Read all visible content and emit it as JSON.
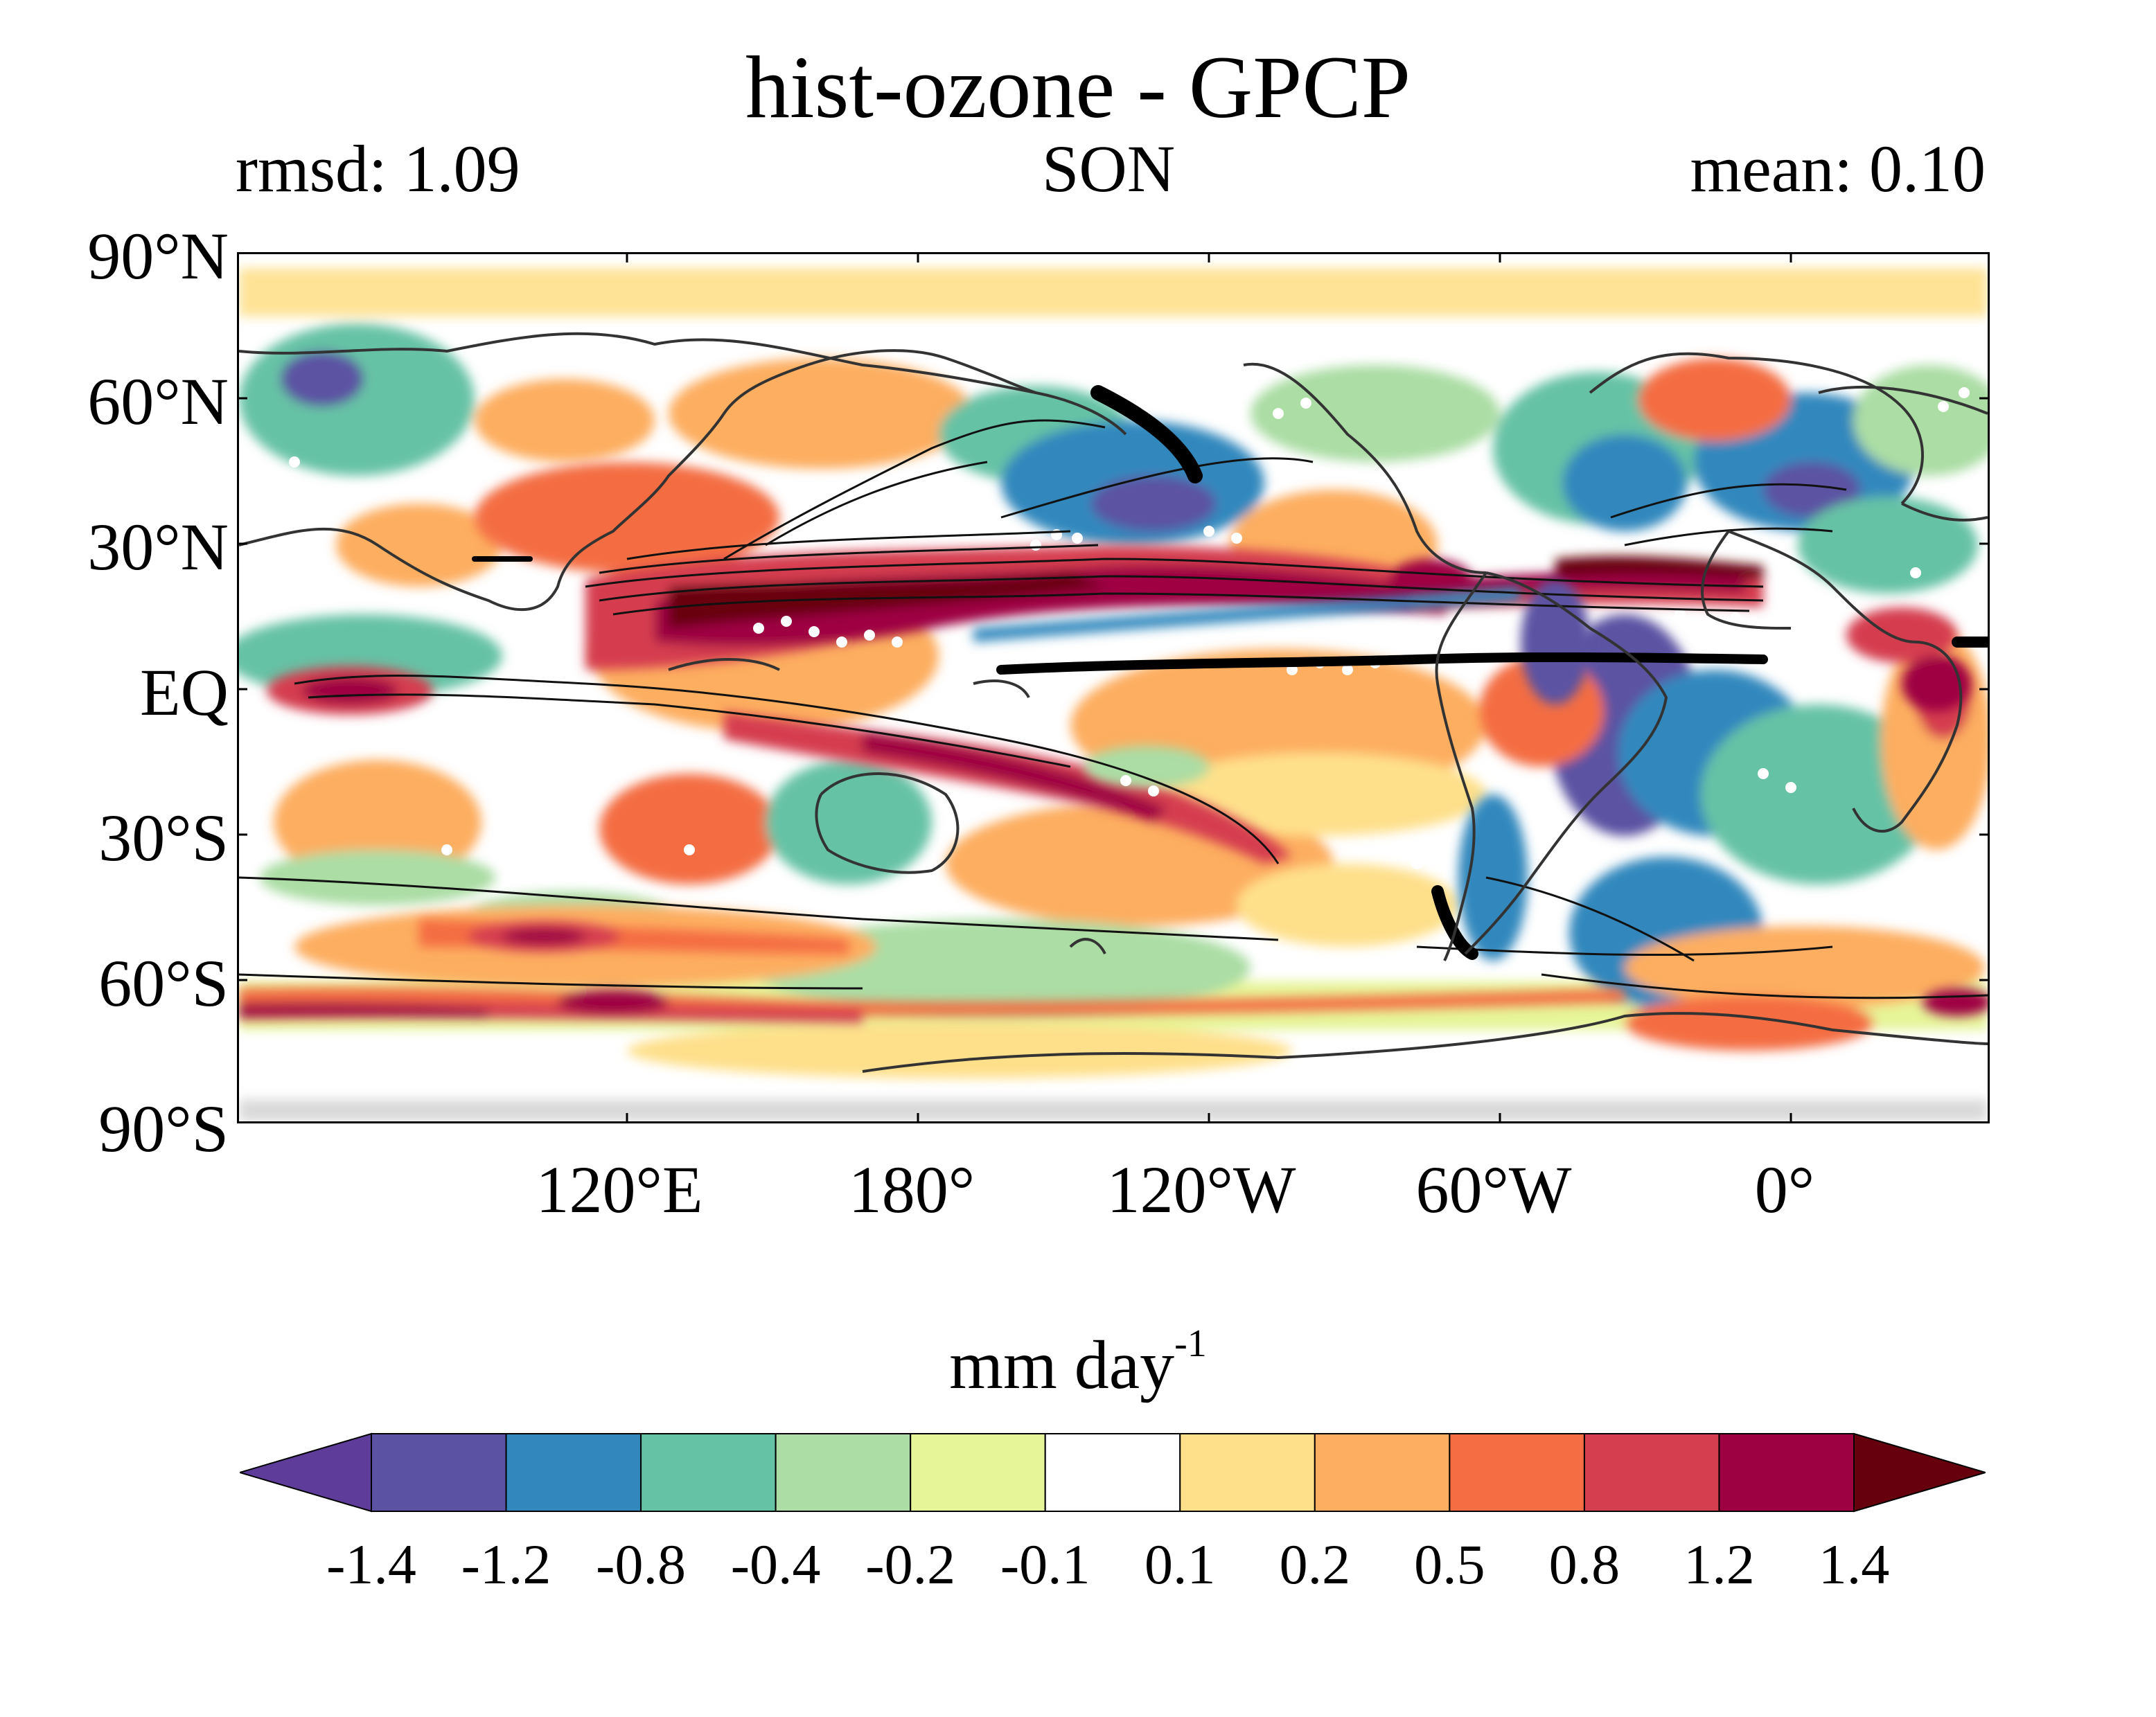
{
  "header": {
    "title": "hist-ozone - GPCP",
    "rmsd_label": "rmsd: 1.09",
    "season": "SON",
    "mean_label": "mean: 0.10"
  },
  "axes": {
    "lat_labels": [
      "90°N",
      "60°N",
      "30°N",
      "EQ",
      "30°S",
      "60°S",
      "90°S"
    ],
    "lon_labels": [
      "120°E",
      "180°",
      "120°W",
      "60°W",
      "0°"
    ]
  },
  "colorbar": {
    "units_text": "mm day",
    "units_exponent": "-1",
    "ticks": [
      "-1.4",
      "-1.2",
      "-0.8",
      "-0.4",
      "-0.2",
      "-0.1",
      "0.1",
      "0.2",
      "0.5",
      "0.8",
      "1.2",
      "1.4"
    ],
    "extend": "both",
    "colors": [
      "#5e3c99",
      "#5b52a3",
      "#3288bd",
      "#66c2a5",
      "#abdda4",
      "#e6f598",
      "#ffffff",
      "#fee08b",
      "#fdae61",
      "#f46d43",
      "#d53e4f",
      "#9e0142",
      "#67000d"
    ]
  },
  "map": {
    "projection": "equirectangular",
    "lat_range": [
      -90,
      90
    ],
    "lon_range": [
      40,
      400
    ],
    "variable": "precipitation difference",
    "season": "SON"
  }
}
